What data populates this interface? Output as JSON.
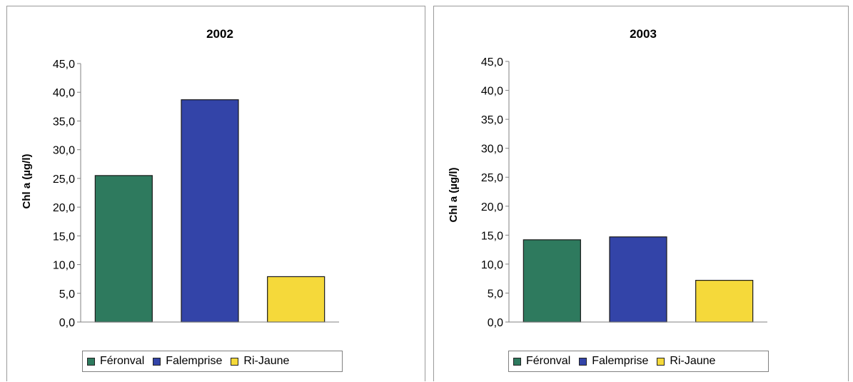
{
  "chart_data": [
    {
      "type": "bar",
      "title": "2002",
      "ylabel": "Chl a (µg/l)",
      "xlabel": "",
      "ylim": [
        0,
        45
      ],
      "yticks": [
        "0,0",
        "5,0",
        "10,0",
        "15,0",
        "20,0",
        "25,0",
        "30,0",
        "35,0",
        "40,0",
        "45,0"
      ],
      "grid": false,
      "legend_position": "bottom",
      "series": [
        {
          "name": "Féronval",
          "values": [
            25.5
          ],
          "color": "#2e7a5e"
        },
        {
          "name": "Falemprise",
          "values": [
            38.7
          ],
          "color": "#3344a8"
        },
        {
          "name": "Ri-Jaune",
          "values": [
            7.9
          ],
          "color": "#f5d93a"
        }
      ]
    },
    {
      "type": "bar",
      "title": "2003",
      "ylabel": "Chl a (µg/l)",
      "xlabel": "",
      "ylim": [
        0,
        45
      ],
      "yticks": [
        "0,0",
        "5,0",
        "10,0",
        "15,0",
        "20,0",
        "25,0",
        "30,0",
        "35,0",
        "40,0",
        "45,0"
      ],
      "grid": false,
      "legend_position": "bottom",
      "series": [
        {
          "name": "Féronval",
          "values": [
            14.2
          ],
          "color": "#2e7a5e"
        },
        {
          "name": "Falemprise",
          "values": [
            14.7
          ],
          "color": "#3344a8"
        },
        {
          "name": "Ri-Jaune",
          "values": [
            7.2
          ],
          "color": "#f5d93a"
        }
      ]
    }
  ]
}
